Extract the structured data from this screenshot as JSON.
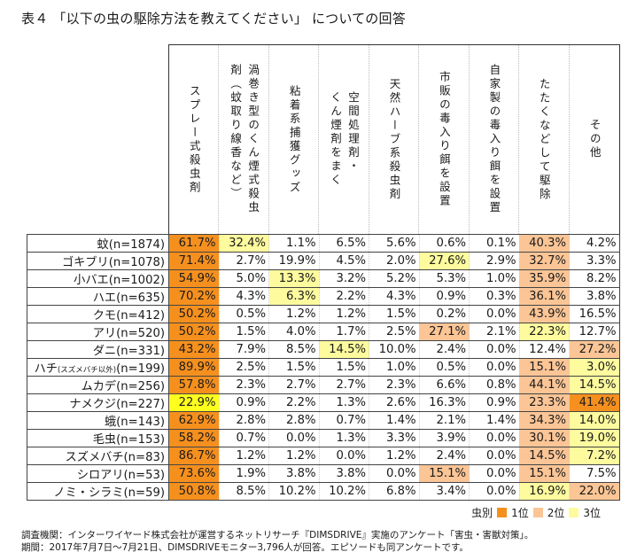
{
  "title": "表４ 「以下の虫の駆除方法を教えてください」 についての回答",
  "columns": [
    "スプレー式殺虫剤",
    "渦巻き型のくん煙式殺虫剤（蚊取り線香など）",
    "粘着系捕獲グッズ",
    "空間処理剤・くん煙剤をまく",
    "天然ハーブ系殺虫剤",
    "市販の毒入り餌を設置",
    "自家製の毒入り餌を設置",
    "たたくなどして駆除",
    "その他"
  ],
  "column_header_lines": [
    [
      "スプレー式殺虫剤"
    ],
    [
      "渦巻き型のくん煙式殺虫",
      "剤（蚊取り線香など）"
    ],
    [
      "粘着系捕獲グッズ"
    ],
    [
      "空間処理剤・",
      "くん煙剤をまく"
    ],
    [
      "天然ハーブ系殺虫剤"
    ],
    [
      "市販の毒入り餌を設置"
    ],
    [
      "自家製の毒入り餌を設置"
    ],
    [
      "たたくなどして駆除"
    ],
    [
      "その他"
    ]
  ],
  "rows": [
    {
      "label": "蚊(n=1874)",
      "label_main": "蚊",
      "label_sub": "",
      "label_n": "(n=1874)",
      "values": [
        "61.7%",
        "32.4%",
        "1.1%",
        "6.5%",
        "5.6%",
        "0.6%",
        "0.1%",
        "40.3%",
        "4.2%"
      ],
      "ranks": [
        1,
        3,
        0,
        0,
        0,
        0,
        0,
        2,
        0
      ]
    },
    {
      "label": "ゴキブリ(n=1078)",
      "label_main": "ゴキブリ",
      "label_sub": "",
      "label_n": "(n=1078)",
      "values": [
        "71.4%",
        "2.7%",
        "19.9%",
        "4.5%",
        "2.0%",
        "27.6%",
        "2.9%",
        "32.7%",
        "3.3%"
      ],
      "ranks": [
        1,
        0,
        0,
        0,
        0,
        3,
        0,
        2,
        0
      ]
    },
    {
      "label": "小バエ(n=1002)",
      "label_main": "小バエ",
      "label_sub": "",
      "label_n": "(n=1002)",
      "values": [
        "54.9%",
        "5.0%",
        "13.3%",
        "3.2%",
        "5.2%",
        "5.3%",
        "1.0%",
        "35.9%",
        "8.2%"
      ],
      "ranks": [
        1,
        0,
        3,
        0,
        0,
        0,
        0,
        2,
        0
      ]
    },
    {
      "label": "ハエ(n=635)",
      "label_main": "ハエ",
      "label_sub": "",
      "label_n": "(n=635)",
      "values": [
        "70.2%",
        "4.3%",
        "6.3%",
        "2.2%",
        "4.3%",
        "0.9%",
        "0.3%",
        "36.1%",
        "3.8%"
      ],
      "ranks": [
        1,
        0,
        3,
        0,
        0,
        0,
        0,
        2,
        0
      ]
    },
    {
      "label": "クモ(n=412)",
      "label_main": "クモ",
      "label_sub": "",
      "label_n": "(n=412)",
      "values": [
        "50.2%",
        "0.5%",
        "1.2%",
        "1.2%",
        "1.5%",
        "0.2%",
        "0.0%",
        "43.9%",
        "16.5%"
      ],
      "ranks": [
        1,
        0,
        0,
        0,
        0,
        0,
        0,
        2,
        0
      ]
    },
    {
      "label": "アリ(n=520)",
      "label_main": "アリ",
      "label_sub": "",
      "label_n": "(n=520)",
      "values": [
        "50.2%",
        "1.5%",
        "4.0%",
        "1.7%",
        "2.5%",
        "27.1%",
        "2.1%",
        "22.3%",
        "12.7%"
      ],
      "ranks": [
        1,
        0,
        0,
        0,
        0,
        2,
        0,
        3,
        0
      ]
    },
    {
      "label": "ダニ(n=331)",
      "label_main": "ダニ",
      "label_sub": "",
      "label_n": "(n=331)",
      "values": [
        "43.2%",
        "7.9%",
        "8.5%",
        "14.5%",
        "10.0%",
        "2.4%",
        "0.0%",
        "12.4%",
        "27.2%"
      ],
      "ranks": [
        1,
        0,
        0,
        3,
        0,
        0,
        0,
        0,
        2
      ]
    },
    {
      "label": "ハチ(スズメバチ以外)(n=199)",
      "label_main": "ハチ",
      "label_sub": "(スズメバチ以外)",
      "label_n": "(n=199)",
      "values": [
        "89.9%",
        "2.5%",
        "1.5%",
        "1.5%",
        "1.0%",
        "0.5%",
        "0.0%",
        "15.1%",
        "3.0%"
      ],
      "ranks": [
        1,
        0,
        0,
        0,
        0,
        0,
        0,
        2,
        3
      ]
    },
    {
      "label": "ムカデ(n=256)",
      "label_main": "ムカデ",
      "label_sub": "",
      "label_n": "(n=256)",
      "values": [
        "57.8%",
        "2.3%",
        "2.7%",
        "2.7%",
        "2.3%",
        "6.6%",
        "0.8%",
        "44.1%",
        "14.5%"
      ],
      "ranks": [
        1,
        0,
        0,
        0,
        0,
        0,
        0,
        2,
        3
      ]
    },
    {
      "label": "ナメクジ(n=227)",
      "label_main": "ナメクジ",
      "label_sub": "",
      "label_n": "(n=227)",
      "values": [
        "22.9%",
        "0.9%",
        "2.2%",
        "1.3%",
        "2.6%",
        "16.3%",
        "0.9%",
        "23.3%",
        "41.4%"
      ],
      "ranks": [
        4,
        0,
        0,
        0,
        0,
        0,
        0,
        2,
        1
      ]
    },
    {
      "label": "蛾(n=143)",
      "label_main": "蛾",
      "label_sub": "",
      "label_n": "(n=143)",
      "values": [
        "62.9%",
        "2.8%",
        "2.8%",
        "0.7%",
        "1.4%",
        "2.1%",
        "1.4%",
        "34.3%",
        "14.0%"
      ],
      "ranks": [
        1,
        0,
        0,
        0,
        0,
        0,
        0,
        2,
        3
      ]
    },
    {
      "label": "毛虫(n=153)",
      "label_main": "毛虫",
      "label_sub": "",
      "label_n": "(n=153)",
      "values": [
        "58.2%",
        "0.7%",
        "0.0%",
        "1.3%",
        "3.3%",
        "3.9%",
        "0.0%",
        "30.1%",
        "19.0%"
      ],
      "ranks": [
        1,
        0,
        0,
        0,
        0,
        0,
        0,
        2,
        3
      ]
    },
    {
      "label": "スズメバチ(n=83)",
      "label_main": "スズメバチ",
      "label_sub": "",
      "label_n": "(n=83)",
      "values": [
        "86.7%",
        "1.2%",
        "1.2%",
        "0.0%",
        "1.2%",
        "2.4%",
        "0.0%",
        "14.5%",
        "7.2%"
      ],
      "ranks": [
        1,
        0,
        0,
        0,
        0,
        0,
        0,
        2,
        3
      ]
    },
    {
      "label": "シロアリ(n=53)",
      "label_main": "シロアリ",
      "label_sub": "",
      "label_n": "(n=53)",
      "values": [
        "73.6%",
        "1.9%",
        "3.8%",
        "3.8%",
        "0.0%",
        "15.1%",
        "0.0%",
        "15.1%",
        "7.5%"
      ],
      "ranks": [
        1,
        0,
        0,
        0,
        0,
        2,
        0,
        2,
        0
      ]
    },
    {
      "label": "ノミ・シラミ(n=59)",
      "label_main": "ノミ・シラミ",
      "label_sub": "",
      "label_n": "(n=59)",
      "values": [
        "50.8%",
        "8.5%",
        "10.2%",
        "10.2%",
        "6.8%",
        "3.4%",
        "0.0%",
        "16.9%",
        "22.0%"
      ],
      "ranks": [
        1,
        0,
        0,
        0,
        0,
        0,
        0,
        3,
        2
      ]
    }
  ],
  "legend": {
    "prefix": "虫別",
    "items": [
      {
        "label": "1位",
        "color": "#f5901e"
      },
      {
        "label": "2位",
        "color": "#fbc596"
      },
      {
        "label": "3位",
        "color": "#fdfb9e"
      }
    ]
  },
  "colors": {
    "rank1": "#f5901e",
    "rank2": "#fbc596",
    "rank3": "#fdfb9e",
    "highlight_yellow": "#ffff1e"
  },
  "footer": {
    "line1": "調査機関：インターワイヤード株式会社が運営するネットリサーチ『DIMSDRIVE』実施のアンケート「害虫・害獣対策」。",
    "line2": "期間：2017年7月7日～7月21日、DIMSDRIVEモニター3,796人が回答。エピソードも同アンケートです。"
  },
  "chart_data": {
    "type": "table",
    "title": "表４ 「以下の虫の駆除方法を教えてください」 についての回答",
    "columns": [
      "スプレー式殺虫剤",
      "渦巻き型のくん煙式殺虫剤（蚊取り線香など）",
      "粘着系捕獲グッズ",
      "空間処理剤・くん煙剤をまく",
      "天然ハーブ系殺虫剤",
      "市販の毒入り餌を設置",
      "自家製の毒入り餌を設置",
      "たたくなどして駆除",
      "その他"
    ],
    "rows": [
      "蚊(n=1874)",
      "ゴキブリ(n=1078)",
      "小バエ(n=1002)",
      "ハエ(n=635)",
      "クモ(n=412)",
      "アリ(n=520)",
      "ダニ(n=331)",
      "ハチ(スズメバチ以外)(n=199)",
      "ムカデ(n=256)",
      "ナメクジ(n=227)",
      "蛾(n=143)",
      "毛虫(n=153)",
      "スズメバチ(n=83)",
      "シロアリ(n=53)",
      "ノミ・シラミ(n=59)"
    ],
    "values": [
      [
        61.7,
        32.4,
        1.1,
        6.5,
        5.6,
        0.6,
        0.1,
        40.3,
        4.2
      ],
      [
        71.4,
        2.7,
        19.9,
        4.5,
        2.0,
        27.6,
        2.9,
        32.7,
        3.3
      ],
      [
        54.9,
        5.0,
        13.3,
        3.2,
        5.2,
        5.3,
        1.0,
        35.9,
        8.2
      ],
      [
        70.2,
        4.3,
        6.3,
        2.2,
        4.3,
        0.9,
        0.3,
        36.1,
        3.8
      ],
      [
        50.2,
        0.5,
        1.2,
        1.2,
        1.5,
        0.2,
        0.0,
        43.9,
        16.5
      ],
      [
        50.2,
        1.5,
        4.0,
        1.7,
        2.5,
        27.1,
        2.1,
        22.3,
        12.7
      ],
      [
        43.2,
        7.9,
        8.5,
        14.5,
        10.0,
        2.4,
        0.0,
        12.4,
        27.2
      ],
      [
        89.9,
        2.5,
        1.5,
        1.5,
        1.0,
        0.5,
        0.0,
        15.1,
        3.0
      ],
      [
        57.8,
        2.3,
        2.7,
        2.7,
        2.3,
        6.6,
        0.8,
        44.1,
        14.5
      ],
      [
        22.9,
        0.9,
        2.2,
        1.3,
        2.6,
        16.3,
        0.9,
        23.3,
        41.4
      ],
      [
        62.9,
        2.8,
        2.8,
        0.7,
        1.4,
        2.1,
        1.4,
        34.3,
        14.0
      ],
      [
        58.2,
        0.7,
        0.0,
        1.3,
        3.3,
        3.9,
        0.0,
        30.1,
        19.0
      ],
      [
        86.7,
        1.2,
        1.2,
        0.0,
        1.2,
        2.4,
        0.0,
        14.5,
        7.2
      ],
      [
        73.6,
        1.9,
        3.8,
        3.8,
        0.0,
        15.1,
        0.0,
        15.1,
        7.5
      ],
      [
        50.8,
        8.5,
        10.2,
        10.2,
        6.8,
        3.4,
        0.0,
        16.9,
        22.0
      ]
    ],
    "unit": "%",
    "legend": [
      "1位",
      "2位",
      "3位"
    ],
    "legend_title": "虫別"
  }
}
